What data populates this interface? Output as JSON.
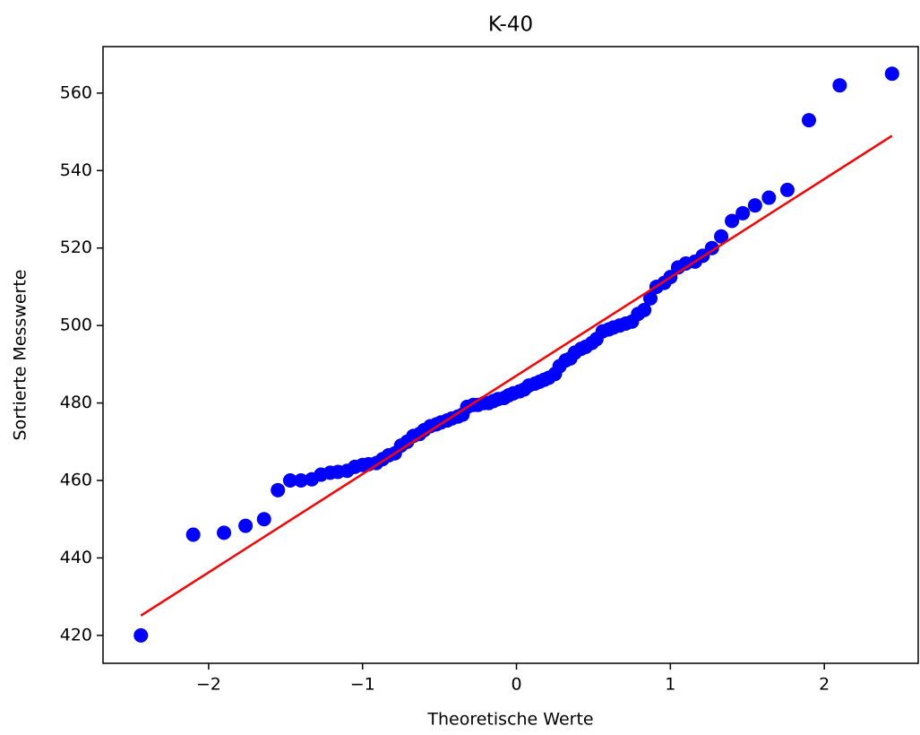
{
  "chart_data": {
    "type": "scatter",
    "title": "K-40",
    "xlabel": "Theoretische Werte",
    "ylabel": "Sortierte Messwerte",
    "xlim": [
      -2.686,
      2.61
    ],
    "ylim": [
      412.8,
      572.0
    ],
    "xticks": [
      {
        "value": -2,
        "label": "−2"
      },
      {
        "value": -1,
        "label": "−1"
      },
      0,
      1,
      2
    ],
    "yticks": [
      420,
      440,
      460,
      480,
      500,
      520,
      540,
      560
    ],
    "points": {
      "color": "#0000ff",
      "x": [
        -2.44,
        -2.1,
        -1.9,
        -1.76,
        -1.64,
        -1.55,
        -1.47,
        -1.4,
        -1.33,
        -1.27,
        -1.21,
        -1.16,
        -1.1,
        -1.05,
        -1.0,
        -0.96,
        -0.91,
        -0.87,
        -0.83,
        -0.79,
        -0.75,
        -0.71,
        -0.67,
        -0.63,
        -0.6,
        -0.56,
        -0.52,
        -0.49,
        -0.45,
        -0.42,
        -0.38,
        -0.35,
        -0.32,
        -0.28,
        -0.25,
        -0.21,
        -0.18,
        -0.15,
        -0.12,
        -0.08,
        -0.05,
        -0.02,
        0.02,
        0.05,
        0.08,
        0.12,
        0.15,
        0.18,
        0.21,
        0.25,
        0.28,
        0.32,
        0.35,
        0.38,
        0.42,
        0.45,
        0.49,
        0.52,
        0.56,
        0.6,
        0.63,
        0.67,
        0.71,
        0.75,
        0.79,
        0.83,
        0.87,
        0.91,
        0.96,
        1.0,
        1.05,
        1.1,
        1.16,
        1.21,
        1.27,
        1.33,
        1.4,
        1.47,
        1.55,
        1.64,
        1.76,
        1.9,
        2.1,
        2.44
      ],
      "y": [
        420,
        446,
        446.5,
        448.3,
        450,
        457.5,
        460,
        460,
        460.3,
        461.5,
        462,
        462.2,
        462.5,
        463.5,
        464,
        464.2,
        464.5,
        465.5,
        466.5,
        467,
        469,
        470,
        471.5,
        472,
        473,
        474,
        474.5,
        475,
        475.5,
        476,
        476.5,
        477,
        479,
        479.5,
        479.5,
        480,
        480,
        480.5,
        481,
        481.3,
        482,
        482.5,
        483,
        483.5,
        484.5,
        485,
        485.5,
        486,
        486.5,
        487.5,
        489.5,
        491,
        491.5,
        493,
        494,
        494.5,
        495.5,
        496.5,
        498.5,
        499,
        499.5,
        500,
        500.5,
        501,
        503,
        504,
        507,
        510,
        511,
        512.5,
        515,
        516,
        516.5,
        518,
        520,
        523,
        527,
        529,
        531,
        533,
        535,
        553,
        562,
        565
      ]
    },
    "fit_line": {
      "color": "#ff0000",
      "x": [
        -2.44,
        2.44
      ],
      "y": [
        425.1,
        549.0
      ]
    }
  }
}
